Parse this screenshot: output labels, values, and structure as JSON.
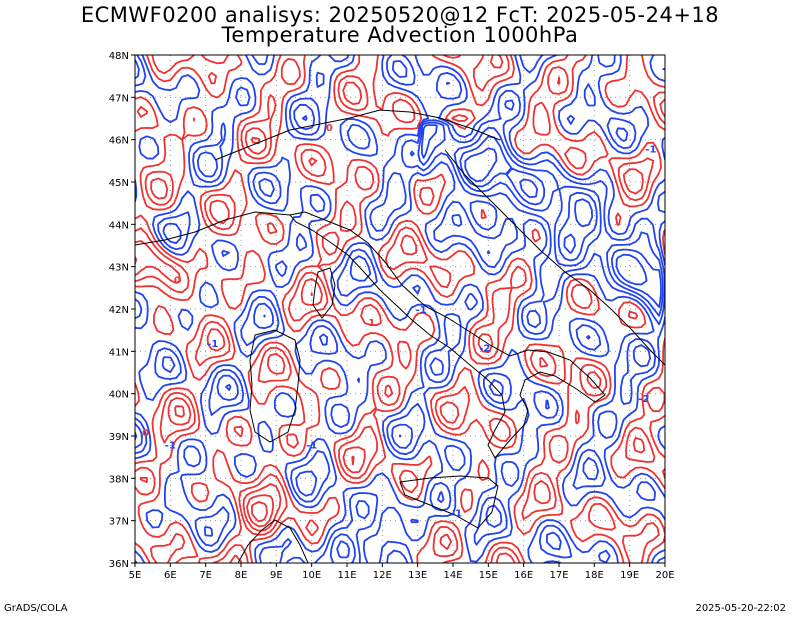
{
  "header": {
    "line1": "ECMWF0200 analisys: 20250520@12 FcT: 2025-05-24+18",
    "line2": "Temperature Advection 1000hPa"
  },
  "map": {
    "lon_labels": [
      "5E",
      "6E",
      "7E",
      "8E",
      "9E",
      "10E",
      "11E",
      "12E",
      "13E",
      "14E",
      "15E",
      "16E",
      "17E",
      "18E",
      "19E",
      "20E"
    ],
    "lat_labels": [
      "48N",
      "47N",
      "46N",
      "45N",
      "44N",
      "43N",
      "42N",
      "41N",
      "40N",
      "39N",
      "38N",
      "37N",
      "36N"
    ],
    "colors": {
      "warm": "#ee3333",
      "cold": "#2244ee",
      "coast": "#000000",
      "grid": "#999999"
    },
    "contour_labels": [
      {
        "text": "0",
        "lon": 6.2,
        "lat": 42.6,
        "kind": "warm"
      },
      {
        "text": "-1",
        "lon": 7.2,
        "lat": 41.1,
        "kind": "cold"
      },
      {
        "text": "0",
        "lon": 5.3,
        "lat": 39.0,
        "kind": "warm"
      },
      {
        "text": "-1",
        "lon": 6.0,
        "lat": 38.7,
        "kind": "cold"
      },
      {
        "text": "-1",
        "lon": 13.1,
        "lat": 41.9,
        "kind": "cold"
      },
      {
        "text": "-2",
        "lon": 14.9,
        "lat": 41.0,
        "kind": "cold"
      },
      {
        "text": "-1",
        "lon": 14.1,
        "lat": 37.1,
        "kind": "cold"
      },
      {
        "text": "-1",
        "lon": 19.6,
        "lat": 45.7,
        "kind": "cold"
      },
      {
        "text": "1",
        "lon": 11.7,
        "lat": 41.6,
        "kind": "warm"
      },
      {
        "text": "0",
        "lon": 10.5,
        "lat": 46.2,
        "kind": "warm"
      },
      {
        "text": "-1",
        "lon": 10.0,
        "lat": 38.7,
        "kind": "cold"
      },
      {
        "text": "-2",
        "lon": 19.4,
        "lat": 39.8,
        "kind": "cold"
      }
    ]
  },
  "footer": {
    "left": "GrADS/COLA",
    "right": "2025-05-20-22:02"
  }
}
